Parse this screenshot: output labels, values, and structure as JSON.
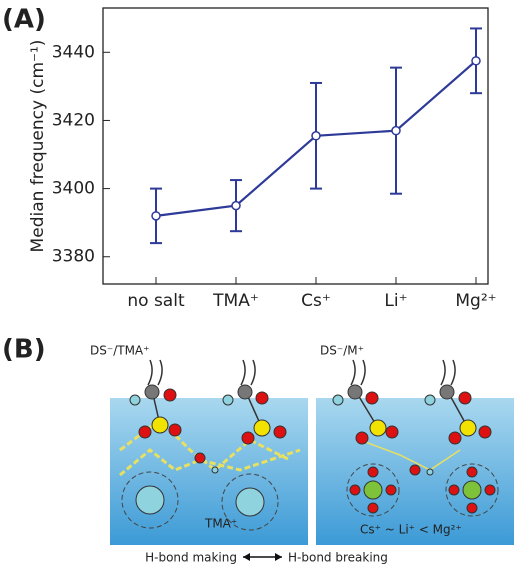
{
  "chart_data": {
    "type": "line",
    "panel_label": "(A)",
    "ylabel": "Median frequency (cm⁻¹)",
    "categories": [
      "no salt",
      "TMA⁺",
      "Cs⁺",
      "Li⁺",
      "Mg²⁺"
    ],
    "values": [
      3392,
      3395,
      3415.5,
      3417,
      3437.5
    ],
    "errors": [
      8,
      7.5,
      15.5,
      18.5,
      9.5
    ],
    "color": "#2e3a98",
    "ylim": [
      3372,
      3453
    ],
    "yticks": [
      3380,
      3400,
      3420,
      3440
    ]
  },
  "diagram": {
    "panel_label": "(B)",
    "left_title": "DS⁻/TMA⁺",
    "right_title": "DS⁻/M⁺",
    "left_ion": "TMA⁺",
    "right_ions": "Cs⁺ ~ Li⁺ < Mg²⁺",
    "left_caption": "H-bond making",
    "right_caption": "H-bond breaking"
  }
}
